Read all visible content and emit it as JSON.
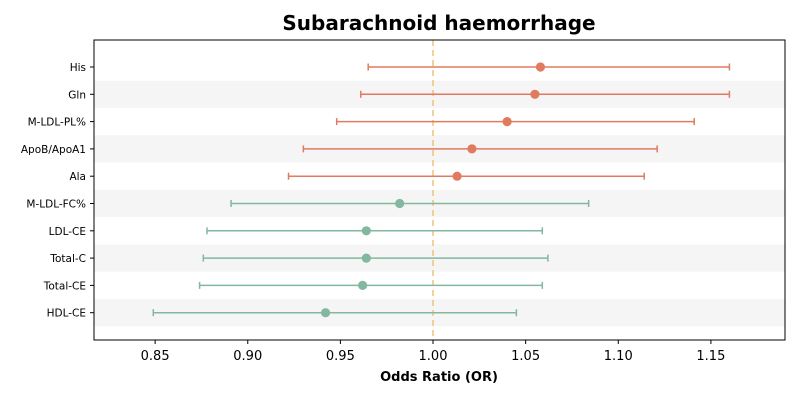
{
  "chart_data": {
    "type": "scatter",
    "title": "Subarachnoid haemorrhage",
    "xlabel": "Odds Ratio (OR)",
    "ylabel": "",
    "xlim": [
      0.817,
      1.19
    ],
    "xticks": [
      0.85,
      0.9,
      0.95,
      1.0,
      1.05,
      1.1,
      1.15
    ],
    "xtick_labels": [
      "0.85",
      "0.90",
      "0.95",
      "1.00",
      "1.05",
      "1.10",
      "1.15"
    ],
    "reference_line": 1.0,
    "grid": false,
    "alternating_row_shading": true,
    "colors": {
      "risk": "#e07b5f",
      "protective": "#82b89f",
      "reference_line": "#f0c27b",
      "row_shade": "#f5f5f5"
    },
    "rows": [
      {
        "label": "His",
        "or": 1.058,
        "lo": 0.965,
        "hi": 1.16,
        "group": "risk"
      },
      {
        "label": "Gln",
        "or": 1.055,
        "lo": 0.961,
        "hi": 1.16,
        "group": "risk"
      },
      {
        "label": "M-LDL-PL%",
        "or": 1.04,
        "lo": 0.948,
        "hi": 1.141,
        "group": "risk"
      },
      {
        "label": "ApoB/ApoA1",
        "or": 1.021,
        "lo": 0.93,
        "hi": 1.121,
        "group": "risk"
      },
      {
        "label": "Ala",
        "or": 1.013,
        "lo": 0.922,
        "hi": 1.114,
        "group": "risk"
      },
      {
        "label": "M-LDL-FC%",
        "or": 0.982,
        "lo": 0.891,
        "hi": 1.084,
        "group": "protective"
      },
      {
        "label": "LDL-CE",
        "or": 0.964,
        "lo": 0.878,
        "hi": 1.059,
        "group": "protective"
      },
      {
        "label": "Total-C",
        "or": 0.964,
        "lo": 0.876,
        "hi": 1.062,
        "group": "protective"
      },
      {
        "label": "Total-CE",
        "or": 0.962,
        "lo": 0.874,
        "hi": 1.059,
        "group": "protective"
      },
      {
        "label": "HDL-CE",
        "or": 0.942,
        "lo": 0.849,
        "hi": 1.045,
        "group": "protective"
      }
    ]
  }
}
